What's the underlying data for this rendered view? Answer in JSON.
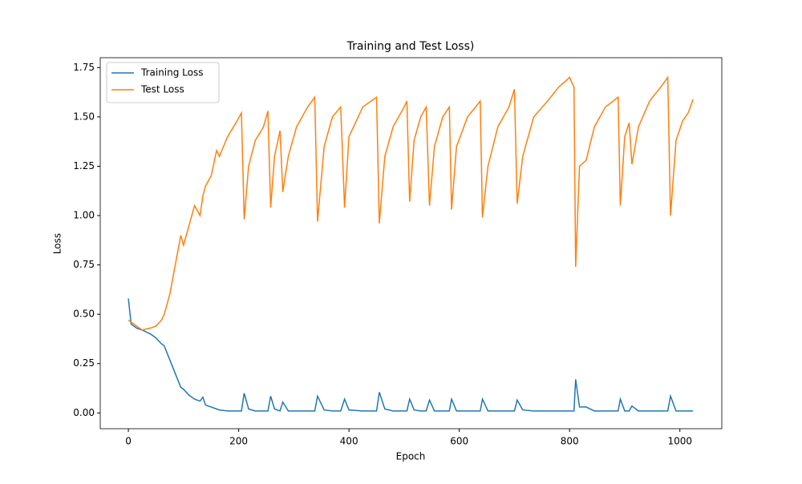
{
  "chart_data": {
    "type": "line",
    "title": "Training and Test Loss)",
    "xlabel": "Epoch",
    "ylabel": "Loss",
    "x": [
      0,
      5,
      15,
      25,
      40,
      50,
      60,
      65,
      75,
      85,
      95,
      100,
      110,
      120,
      130,
      135,
      140,
      150,
      160,
      165,
      180,
      195,
      205,
      210,
      218,
      230,
      245,
      253,
      258,
      265,
      275,
      280,
      290,
      305,
      325,
      338,
      343,
      355,
      370,
      385,
      392,
      400,
      425,
      450,
      455,
      465,
      480,
      500,
      505,
      510,
      518,
      530,
      540,
      546,
      555,
      570,
      582,
      586,
      595,
      615,
      638,
      642,
      652,
      670,
      690,
      700,
      705,
      715,
      735,
      760,
      780,
      800,
      808,
      811,
      818,
      830,
      845,
      865,
      888,
      892,
      900,
      908,
      913,
      925,
      945,
      965,
      978,
      983,
      993,
      1005,
      1015,
      1024
    ],
    "series": [
      {
        "name": "Training Loss",
        "color": "#1f77b4",
        "values": [
          0.58,
          0.45,
          0.43,
          0.42,
          0.4,
          0.38,
          0.35,
          0.34,
          0.27,
          0.2,
          0.13,
          0.12,
          0.09,
          0.07,
          0.06,
          0.08,
          0.04,
          0.03,
          0.02,
          0.015,
          0.01,
          0.01,
          0.01,
          0.1,
          0.02,
          0.01,
          0.01,
          0.01,
          0.085,
          0.02,
          0.01,
          0.055,
          0.01,
          0.01,
          0.01,
          0.01,
          0.085,
          0.015,
          0.01,
          0.01,
          0.07,
          0.015,
          0.01,
          0.01,
          0.105,
          0.02,
          0.01,
          0.01,
          0.01,
          0.07,
          0.015,
          0.01,
          0.01,
          0.065,
          0.01,
          0.01,
          0.01,
          0.07,
          0.01,
          0.01,
          0.01,
          0.07,
          0.01,
          0.01,
          0.01,
          0.01,
          0.065,
          0.015,
          0.01,
          0.01,
          0.01,
          0.01,
          0.01,
          0.17,
          0.03,
          0.03,
          0.01,
          0.01,
          0.01,
          0.07,
          0.01,
          0.01,
          0.035,
          0.01,
          0.01,
          0.01,
          0.01,
          0.085,
          0.01,
          0.01,
          0.01,
          0.01
        ]
      },
      {
        "name": "Test Loss",
        "color": "#ff7f0e",
        "values": [
          0.47,
          0.46,
          0.44,
          0.42,
          0.43,
          0.44,
          0.47,
          0.5,
          0.6,
          0.75,
          0.9,
          0.85,
          0.95,
          1.05,
          1.0,
          1.1,
          1.15,
          1.2,
          1.33,
          1.3,
          1.4,
          1.47,
          1.52,
          0.98,
          1.25,
          1.38,
          1.45,
          1.53,
          1.04,
          1.3,
          1.43,
          1.12,
          1.3,
          1.45,
          1.55,
          1.6,
          0.97,
          1.35,
          1.5,
          1.55,
          1.04,
          1.4,
          1.55,
          1.6,
          0.96,
          1.3,
          1.45,
          1.55,
          1.58,
          1.07,
          1.38,
          1.5,
          1.55,
          1.05,
          1.35,
          1.5,
          1.55,
          1.03,
          1.35,
          1.5,
          1.58,
          0.99,
          1.25,
          1.45,
          1.55,
          1.64,
          1.06,
          1.3,
          1.5,
          1.58,
          1.65,
          1.7,
          1.65,
          0.74,
          1.25,
          1.28,
          1.45,
          1.55,
          1.6,
          1.05,
          1.4,
          1.47,
          1.26,
          1.45,
          1.58,
          1.65,
          1.7,
          1.0,
          1.38,
          1.48,
          1.52,
          1.59
        ]
      }
    ],
    "xlim": [
      -51,
      1076
    ],
    "ylim": [
      -0.08,
      1.8
    ],
    "xticks": [
      0,
      200,
      400,
      600,
      800,
      1000
    ],
    "yticks": [
      {
        "value": 0,
        "label": "0.00"
      },
      {
        "value": 0.25,
        "label": "0.25"
      },
      {
        "value": 0.5,
        "label": "0.50"
      },
      {
        "value": 0.75,
        "label": "0.75"
      },
      {
        "value": 1,
        "label": "1.00"
      },
      {
        "value": 1.25,
        "label": "1.25"
      },
      {
        "value": 1.5,
        "label": "1.50"
      },
      {
        "value": 1.75,
        "label": "1.75"
      }
    ],
    "legend": "upper-left"
  }
}
